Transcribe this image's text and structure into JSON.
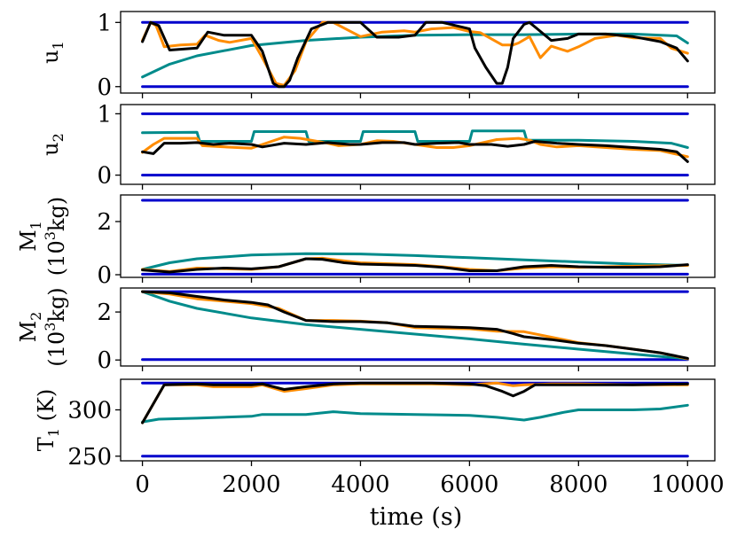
{
  "chart_data": [
    {
      "type": "line",
      "ylabel_lines": [
        "u",
        "1"
      ],
      "ylabel_format": "sub",
      "ylim": [
        -0.1,
        1.17
      ],
      "yticks": [
        0,
        1
      ],
      "series": [
        {
          "color": "#0000cc",
          "x": [
            0,
            10000
          ],
          "y": [
            1,
            1
          ]
        },
        {
          "color": "#0000cc",
          "x": [
            0,
            10000
          ],
          "y": [
            0,
            0
          ]
        },
        {
          "color": "#008b8b",
          "x": [
            0,
            500,
            1000,
            2000,
            3000,
            4000,
            5000,
            6000,
            7000,
            8000,
            9000,
            9800,
            10000
          ],
          "y": [
            0.15,
            0.35,
            0.48,
            0.64,
            0.72,
            0.77,
            0.8,
            0.81,
            0.81,
            0.82,
            0.82,
            0.79,
            0.68
          ]
        },
        {
          "color": "#ff8c00",
          "x": [
            0,
            150,
            250,
            400,
            700,
            1000,
            1150,
            1400,
            1600,
            2000,
            2200,
            2450,
            2600,
            2800,
            3000,
            3300,
            3500,
            4000,
            4400,
            4800,
            5000,
            5300,
            5700,
            6000,
            6200,
            6600,
            6800,
            6900,
            7100,
            7300,
            7500,
            7800,
            8000,
            8300,
            8700,
            9000,
            9500,
            9700,
            10000
          ],
          "y": [
            0.72,
            1.0,
            0.95,
            0.62,
            0.65,
            0.66,
            0.8,
            0.72,
            0.69,
            0.75,
            0.45,
            0.05,
            0.02,
            0.25,
            0.7,
            1.0,
            1.0,
            0.78,
            0.85,
            0.87,
            0.85,
            0.9,
            0.92,
            0.86,
            0.84,
            0.65,
            0.65,
            0.68,
            0.78,
            0.45,
            0.63,
            0.55,
            0.62,
            0.75,
            0.8,
            0.76,
            0.75,
            0.6,
            0.52
          ]
        },
        {
          "color": "#000000",
          "x": [
            0,
            150,
            300,
            500,
            1000,
            1200,
            1500,
            1800,
            2000,
            2200,
            2400,
            2500,
            2600,
            2700,
            2850,
            3100,
            3400,
            3800,
            4000,
            4300,
            4700,
            5000,
            5200,
            5500,
            6000,
            6100,
            6300,
            6500,
            6600,
            6700,
            6800,
            7000,
            7100,
            7200,
            7500,
            7800,
            8000,
            8500,
            9000,
            9500,
            9800,
            10000
          ],
          "y": [
            0.7,
            1.0,
            0.95,
            0.57,
            0.6,
            0.85,
            0.8,
            0.8,
            0.8,
            0.55,
            0.05,
            0.0,
            0.0,
            0.1,
            0.45,
            0.9,
            1.0,
            1.0,
            1.0,
            0.77,
            0.77,
            0.8,
            1.0,
            1.0,
            0.9,
            0.6,
            0.3,
            0.05,
            0.05,
            0.3,
            0.75,
            0.97,
            1.0,
            0.93,
            0.72,
            0.75,
            0.82,
            0.82,
            0.78,
            0.7,
            0.6,
            0.4
          ]
        }
      ]
    },
    {
      "type": "line",
      "ylabel_lines": [
        "u",
        "2"
      ],
      "ylabel_format": "sub",
      "ylim": [
        -0.15,
        1.15
      ],
      "yticks": [
        0,
        1
      ],
      "series": [
        {
          "color": "#0000cc",
          "x": [
            0,
            10000
          ],
          "y": [
            1,
            1
          ]
        },
        {
          "color": "#0000cc",
          "x": [
            0,
            10000
          ],
          "y": [
            0,
            0
          ]
        },
        {
          "color": "#008b8b",
          "x": [
            0,
            1000,
            1050,
            2000,
            2050,
            3000,
            3050,
            4000,
            4050,
            5000,
            5050,
            6000,
            6050,
            7000,
            7050,
            8000,
            9000,
            9700,
            10000
          ],
          "y": [
            0.69,
            0.7,
            0.55,
            0.55,
            0.71,
            0.71,
            0.55,
            0.55,
            0.71,
            0.71,
            0.55,
            0.55,
            0.72,
            0.72,
            0.57,
            0.57,
            0.55,
            0.52,
            0.45
          ]
        },
        {
          "color": "#ff8c00",
          "x": [
            0,
            200,
            400,
            1000,
            1100,
            1500,
            2000,
            2200,
            2600,
            2900,
            3400,
            3600,
            4000,
            4300,
            4600,
            5000,
            5400,
            5700,
            6000,
            6500,
            6900,
            7100,
            7300,
            7600,
            8000,
            8500,
            9000,
            9500,
            10000
          ],
          "y": [
            0.37,
            0.5,
            0.6,
            0.6,
            0.48,
            0.46,
            0.44,
            0.5,
            0.62,
            0.6,
            0.52,
            0.48,
            0.5,
            0.56,
            0.55,
            0.5,
            0.45,
            0.45,
            0.48,
            0.58,
            0.6,
            0.57,
            0.5,
            0.46,
            0.48,
            0.45,
            0.42,
            0.4,
            0.3
          ]
        },
        {
          "color": "#000000",
          "x": [
            0,
            200,
            400,
            700,
            1000,
            1300,
            1600,
            2000,
            2200,
            2600,
            3000,
            3400,
            3800,
            4000,
            4400,
            4800,
            5000,
            5400,
            5800,
            6000,
            6400,
            6700,
            7000,
            7200,
            7600,
            8000,
            8500,
            9000,
            9500,
            9800,
            10000
          ],
          "y": [
            0.38,
            0.35,
            0.52,
            0.52,
            0.53,
            0.5,
            0.52,
            0.5,
            0.46,
            0.52,
            0.5,
            0.53,
            0.5,
            0.5,
            0.53,
            0.53,
            0.5,
            0.52,
            0.53,
            0.5,
            0.5,
            0.47,
            0.5,
            0.55,
            0.52,
            0.5,
            0.48,
            0.45,
            0.42,
            0.38,
            0.22
          ]
        }
      ]
    },
    {
      "type": "line",
      "ylabel_lines": [
        "M",
        "1",
        "(10",
        "3",
        "kg)"
      ],
      "ylabel_format": "sub-sup",
      "ylim": [
        -0.1,
        3.0
      ],
      "yticks": [
        0,
        2
      ],
      "series": [
        {
          "color": "#0000cc",
          "x": [
            0,
            10000
          ],
          "y": [
            2.8,
            2.8
          ]
        },
        {
          "color": "#0000cc",
          "x": [
            0,
            10000
          ],
          "y": [
            0.02,
            0.02
          ]
        },
        {
          "color": "#008b8b",
          "x": [
            0,
            500,
            1000,
            2000,
            3000,
            4000,
            5000,
            6000,
            7000,
            8000,
            9000,
            10000
          ],
          "y": [
            0.2,
            0.45,
            0.6,
            0.74,
            0.79,
            0.78,
            0.72,
            0.64,
            0.56,
            0.48,
            0.4,
            0.35
          ]
        },
        {
          "color": "#ff8c00",
          "x": [
            0,
            500,
            1000,
            2000,
            2500,
            3000,
            3300,
            4000,
            5000,
            5500,
            6000,
            6500,
            7000,
            7500,
            8000,
            9000,
            10000
          ],
          "y": [
            0.2,
            0.12,
            0.25,
            0.2,
            0.3,
            0.6,
            0.62,
            0.45,
            0.38,
            0.3,
            0.2,
            0.15,
            0.25,
            0.3,
            0.28,
            0.32,
            0.35
          ]
        },
        {
          "color": "#000000",
          "x": [
            0,
            500,
            1000,
            1500,
            2000,
            2500,
            3000,
            3300,
            3700,
            4000,
            5000,
            5500,
            6000,
            6500,
            7000,
            7500,
            8000,
            8500,
            9000,
            9500,
            10000
          ],
          "y": [
            0.18,
            0.1,
            0.2,
            0.25,
            0.22,
            0.3,
            0.6,
            0.58,
            0.45,
            0.4,
            0.35,
            0.28,
            0.15,
            0.15,
            0.3,
            0.35,
            0.3,
            0.28,
            0.28,
            0.3,
            0.38
          ]
        }
      ]
    },
    {
      "type": "line",
      "ylabel_lines": [
        "M",
        "2",
        "(10",
        "3",
        "kg)"
      ],
      "ylabel_format": "sub-sup",
      "ylim": [
        -0.25,
        3.0
      ],
      "yticks": [
        0,
        2
      ],
      "series": [
        {
          "color": "#0000cc",
          "x": [
            0,
            10000
          ],
          "y": [
            2.85,
            2.85
          ]
        },
        {
          "color": "#0000cc",
          "x": [
            0,
            10000
          ],
          "y": [
            0.02,
            0.02
          ]
        },
        {
          "color": "#008b8b",
          "x": [
            0,
            500,
            1000,
            2000,
            3000,
            4000,
            5000,
            6000,
            7000,
            8000,
            9000,
            10000
          ],
          "y": [
            2.85,
            2.45,
            2.15,
            1.75,
            1.48,
            1.28,
            1.08,
            0.88,
            0.66,
            0.45,
            0.25,
            0.05
          ]
        },
        {
          "color": "#ff8c00",
          "x": [
            0,
            500,
            1000,
            1500,
            2000,
            2500,
            3000,
            3500,
            4000,
            4500,
            5000,
            5500,
            6000,
            6500,
            7000,
            7500,
            8000,
            8500,
            9000,
            9500,
            10000
          ],
          "y": [
            2.85,
            2.75,
            2.55,
            2.45,
            2.35,
            2.15,
            1.65,
            1.65,
            1.62,
            1.55,
            1.35,
            1.32,
            1.3,
            1.2,
            1.18,
            0.95,
            0.72,
            0.6,
            0.45,
            0.3,
            0.05
          ]
        },
        {
          "color": "#000000",
          "x": [
            0,
            500,
            1000,
            1500,
            2000,
            2300,
            2600,
            3000,
            3500,
            4000,
            4500,
            5000,
            5500,
            6000,
            6500,
            6800,
            7000,
            7500,
            8000,
            8500,
            9000,
            9500,
            10000
          ],
          "y": [
            2.85,
            2.8,
            2.65,
            2.5,
            2.4,
            2.3,
            2.0,
            1.65,
            1.6,
            1.6,
            1.55,
            1.4,
            1.38,
            1.35,
            1.28,
            1.1,
            0.97,
            0.85,
            0.7,
            0.6,
            0.45,
            0.3,
            0.07
          ]
        }
      ]
    },
    {
      "type": "line",
      "ylabel_lines": [
        "T",
        "1",
        " (K)"
      ],
      "ylabel_format": "sub-tail",
      "ylim": [
        245,
        333
      ],
      "yticks": [
        250,
        300
      ],
      "series": [
        {
          "color": "#0000cc",
          "x": [
            0,
            10000
          ],
          "y": [
            329,
            329
          ]
        },
        {
          "color": "#0000cc",
          "x": [
            0,
            10000
          ],
          "y": [
            250,
            250
          ]
        },
        {
          "color": "#008b8b",
          "x": [
            0,
            300,
            1000,
            2000,
            2200,
            3000,
            3500,
            4000,
            5000,
            6000,
            6500,
            7000,
            7300,
            7700,
            8000,
            9000,
            9500,
            10000
          ],
          "y": [
            287,
            290,
            291,
            293,
            295,
            295,
            298,
            296,
            295,
            294,
            292,
            289,
            292,
            297,
            300,
            300,
            301,
            305
          ]
        },
        {
          "color": "#ff8c00",
          "x": [
            0,
            400,
            1000,
            1300,
            2000,
            2200,
            2600,
            3000,
            3500,
            4000,
            5000,
            5300,
            6000,
            6500,
            6800,
            7000,
            7500,
            8000,
            9000,
            10000
          ],
          "y": [
            286,
            327,
            327,
            325,
            325,
            327,
            320,
            323,
            327,
            328,
            328,
            328,
            327,
            329,
            326,
            327,
            328,
            328,
            327,
            327
          ]
        },
        {
          "color": "#000000",
          "x": [
            0,
            400,
            1000,
            1300,
            2000,
            2200,
            2600,
            3000,
            3500,
            4000,
            5000,
            5300,
            6000,
            6300,
            6600,
            6800,
            7000,
            7200,
            8000,
            9000,
            10000
          ],
          "y": [
            286,
            327,
            328,
            327,
            327,
            328,
            322,
            325,
            328,
            329,
            329,
            329,
            328,
            326,
            320,
            315,
            320,
            327,
            327,
            327,
            328
          ]
        }
      ]
    }
  ],
  "shared_x": {
    "xlim": [
      -400,
      10500
    ],
    "xticks": [
      0,
      2000,
      4000,
      6000,
      8000,
      10000
    ],
    "xtick_labels": [
      "0",
      "2000",
      "4000",
      "6000",
      "8000",
      "10000"
    ],
    "xlabel": "time (s)"
  }
}
